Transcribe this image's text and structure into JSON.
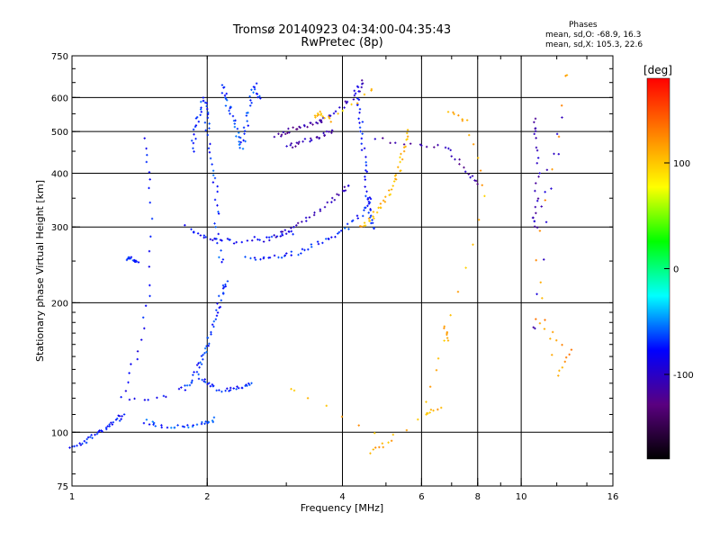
{
  "header": {
    "title": "Tromsø 20140923 04:34:00-04:35:43",
    "subtitle": "RwPretec (8p)"
  },
  "phases_box": {
    "title": "Phases",
    "line_o": "mean, sd,O: -68.9, 16.3",
    "line_x": "mean, sd,X: 105.3, 22.6"
  },
  "chart_data": {
    "type": "scatter",
    "title": "Tromsø 20140923 04:34:00-04:35:43",
    "subtitle": "RwPretec (8p)",
    "xlabel": "Frequency [MHz]",
    "ylabel": "Stationary phase Virtual Height [km]",
    "x_scale": "log",
    "y_scale": "log",
    "xlim": [
      1,
      16
    ],
    "ylim": [
      75,
      750
    ],
    "x_ticks": [
      1,
      2,
      4,
      6,
      8,
      10,
      16
    ],
    "y_ticks": [
      75,
      100,
      200,
      300,
      400,
      500,
      600,
      750
    ],
    "grid_x": [
      2,
      4,
      6,
      8,
      10
    ],
    "grid_y": [
      100,
      200,
      300,
      400,
      500,
      600
    ],
    "grid": true,
    "colorbar": {
      "label": "[deg]",
      "range": [
        -180,
        180
      ],
      "ticks": [
        100,
        0,
        -100
      ],
      "stops": [
        "#000000",
        "#5a0080",
        "#0000ff",
        "#00ffff",
        "#00ff00",
        "#ffff00",
        "#ff8000",
        "#ff0000"
      ]
    },
    "series": [
      {
        "phase": -75,
        "points": [
          [
            1.0,
            93
          ],
          [
            1.05,
            94
          ],
          [
            1.1,
            97
          ],
          [
            1.15,
            100
          ],
          [
            1.2,
            103
          ],
          [
            1.25,
            106
          ],
          [
            1.3,
            110
          ]
        ]
      },
      {
        "phase": -65,
        "points": [
          [
            1.45,
            106
          ],
          [
            1.55,
            104
          ],
          [
            1.7,
            103
          ],
          [
            1.85,
            104
          ],
          [
            2.0,
            105
          ],
          [
            2.05,
            107
          ]
        ]
      },
      {
        "phase": -70,
        "points": [
          [
            1.75,
            125
          ],
          [
            1.85,
            130
          ],
          [
            1.9,
            140
          ],
          [
            1.95,
            150
          ],
          [
            2.0,
            160
          ],
          [
            2.05,
            175
          ],
          [
            2.1,
            190
          ],
          [
            2.15,
            210
          ],
          [
            2.2,
            222
          ]
        ]
      },
      {
        "phase": -70,
        "points": [
          [
            1.9,
            135
          ],
          [
            2.0,
            130
          ],
          [
            2.1,
            126
          ],
          [
            2.25,
            125
          ],
          [
            2.4,
            128
          ],
          [
            2.5,
            130
          ]
        ]
      },
      {
        "phase": -72,
        "points": [
          [
            1.32,
            255
          ],
          [
            1.35,
            252
          ],
          [
            1.4,
            250
          ]
        ]
      },
      {
        "phase": -68,
        "points": [
          [
            1.85,
            450
          ],
          [
            1.88,
            500
          ],
          [
            1.92,
            550
          ],
          [
            1.95,
            600
          ],
          [
            2.0,
            560
          ],
          [
            2.0,
            500
          ],
          [
            2.05,
            420
          ],
          [
            2.1,
            360
          ],
          [
            2.1,
            300
          ],
          [
            2.15,
            250
          ]
        ]
      },
      {
        "phase": -65,
        "points": [
          [
            2.15,
            640
          ],
          [
            2.2,
            600
          ],
          [
            2.25,
            560
          ],
          [
            2.3,
            520
          ],
          [
            2.35,
            480
          ],
          [
            2.4,
            460
          ],
          [
            2.45,
            520
          ],
          [
            2.5,
            580
          ],
          [
            2.55,
            640
          ],
          [
            2.6,
            600
          ]
        ]
      },
      {
        "phase": -70,
        "points": [
          [
            2.45,
            255
          ],
          [
            2.7,
            254
          ],
          [
            2.95,
            256
          ],
          [
            3.2,
            262
          ],
          [
            3.5,
            272
          ],
          [
            3.8,
            285
          ],
          [
            4.1,
            300
          ],
          [
            4.4,
            320
          ],
          [
            4.6,
            350
          ]
        ]
      },
      {
        "phase": -80,
        "points": [
          [
            1.8,
            300
          ],
          [
            1.95,
            285
          ],
          [
            2.1,
            280
          ],
          [
            2.3,
            278
          ],
          [
            2.6,
            282
          ],
          [
            2.9,
            288
          ],
          [
            3.1,
            290
          ]
        ]
      },
      {
        "phase": -105,
        "points": [
          [
            2.7,
            280
          ],
          [
            3.0,
            295
          ],
          [
            3.3,
            310
          ],
          [
            3.6,
            330
          ],
          [
            3.9,
            355
          ],
          [
            4.1,
            375
          ]
        ]
      },
      {
        "phase": -115,
        "points": [
          [
            2.85,
            490
          ],
          [
            3.0,
            500
          ],
          [
            3.2,
            510
          ],
          [
            3.4,
            520
          ],
          [
            3.6,
            530
          ]
        ]
      },
      {
        "phase": -110,
        "points": [
          [
            3.0,
            460
          ],
          [
            3.2,
            470
          ],
          [
            3.45,
            480
          ],
          [
            3.6,
            490
          ],
          [
            3.8,
            500
          ]
        ]
      },
      {
        "phase": -105,
        "points": [
          [
            3.6,
            530
          ],
          [
            3.9,
            560
          ],
          [
            4.2,
            600
          ],
          [
            4.45,
            650
          ]
        ]
      },
      {
        "phase": -75,
        "points": [
          [
            4.3,
            640
          ],
          [
            4.35,
            580
          ],
          [
            4.4,
            520
          ],
          [
            4.45,
            460
          ],
          [
            4.5,
            400
          ],
          [
            4.55,
            350
          ],
          [
            4.6,
            320
          ],
          [
            4.65,
            300
          ]
        ]
      },
      {
        "phase": 105,
        "points": [
          [
            4.4,
            300
          ],
          [
            4.6,
            310
          ],
          [
            4.8,
            330
          ],
          [
            5.0,
            350
          ],
          [
            5.2,
            380
          ],
          [
            5.35,
            410
          ],
          [
            5.45,
            450
          ],
          [
            5.55,
            500
          ]
        ]
      },
      {
        "phase": 100,
        "points": [
          [
            3.45,
            540
          ],
          [
            3.6,
            550
          ],
          [
            3.75,
            530
          ],
          [
            4.6,
            620
          ]
        ]
      },
      {
        "phase": -110,
        "points": [
          [
            4.7,
            480
          ],
          [
            5.9,
            465
          ],
          [
            6.9,
            460
          ],
          [
            7.4,
            410
          ],
          [
            8.0,
            380
          ]
        ]
      },
      {
        "phase": 110,
        "points": [
          [
            6.9,
            555
          ],
          [
            7.6,
            530
          ],
          [
            8.3,
            355
          ],
          [
            6.8,
            165
          ],
          [
            6.8,
            175
          ],
          [
            6.1,
            110
          ],
          [
            6.6,
            115
          ],
          [
            4.6,
            90
          ],
          [
            5.1,
            95
          ],
          [
            3.1,
            125
          ]
        ]
      },
      {
        "phase": -105,
        "points": [
          [
            10.7,
            530
          ],
          [
            10.8,
            480
          ],
          [
            10.9,
            390
          ],
          [
            10.7,
            320
          ],
          [
            10.8,
            300
          ],
          [
            12.3,
            540
          ],
          [
            10.7,
            175
          ]
        ]
      },
      {
        "phase": 120,
        "points": [
          [
            10.7,
            185
          ],
          [
            12.8,
            155
          ],
          [
            12.0,
            135
          ],
          [
            10.8,
            250
          ],
          [
            12.7,
            670
          ]
        ]
      },
      {
        "phase": -80,
        "points": [
          [
            1.45,
            480
          ],
          [
            1.5,
            370
          ],
          [
            1.5,
            220
          ],
          [
            1.4,
            155
          ],
          [
            1.3,
            120
          ],
          [
            1.6,
            120
          ]
        ]
      }
    ]
  }
}
